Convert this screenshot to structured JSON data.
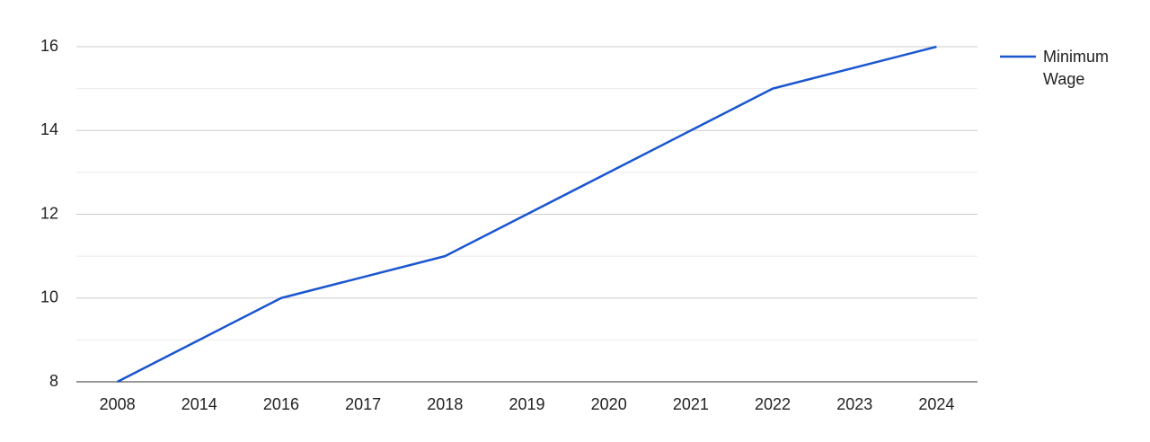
{
  "chart_data": {
    "type": "line",
    "categories": [
      "2008",
      "2014",
      "2016",
      "2017",
      "2018",
      "2019",
      "2020",
      "2021",
      "2022",
      "2023",
      "2024"
    ],
    "series": [
      {
        "name": "Minimum Wage",
        "color": "#1a56d0",
        "values": [
          8,
          9,
          10,
          10.5,
          11,
          12,
          13,
          14,
          15,
          15.5,
          16
        ]
      }
    ],
    "ylim": [
      8,
      16
    ],
    "yticks": [
      8,
      10,
      12,
      14,
      16
    ],
    "minor_yticks": [
      9,
      11,
      13,
      15
    ],
    "grid": true,
    "legend": "right"
  }
}
